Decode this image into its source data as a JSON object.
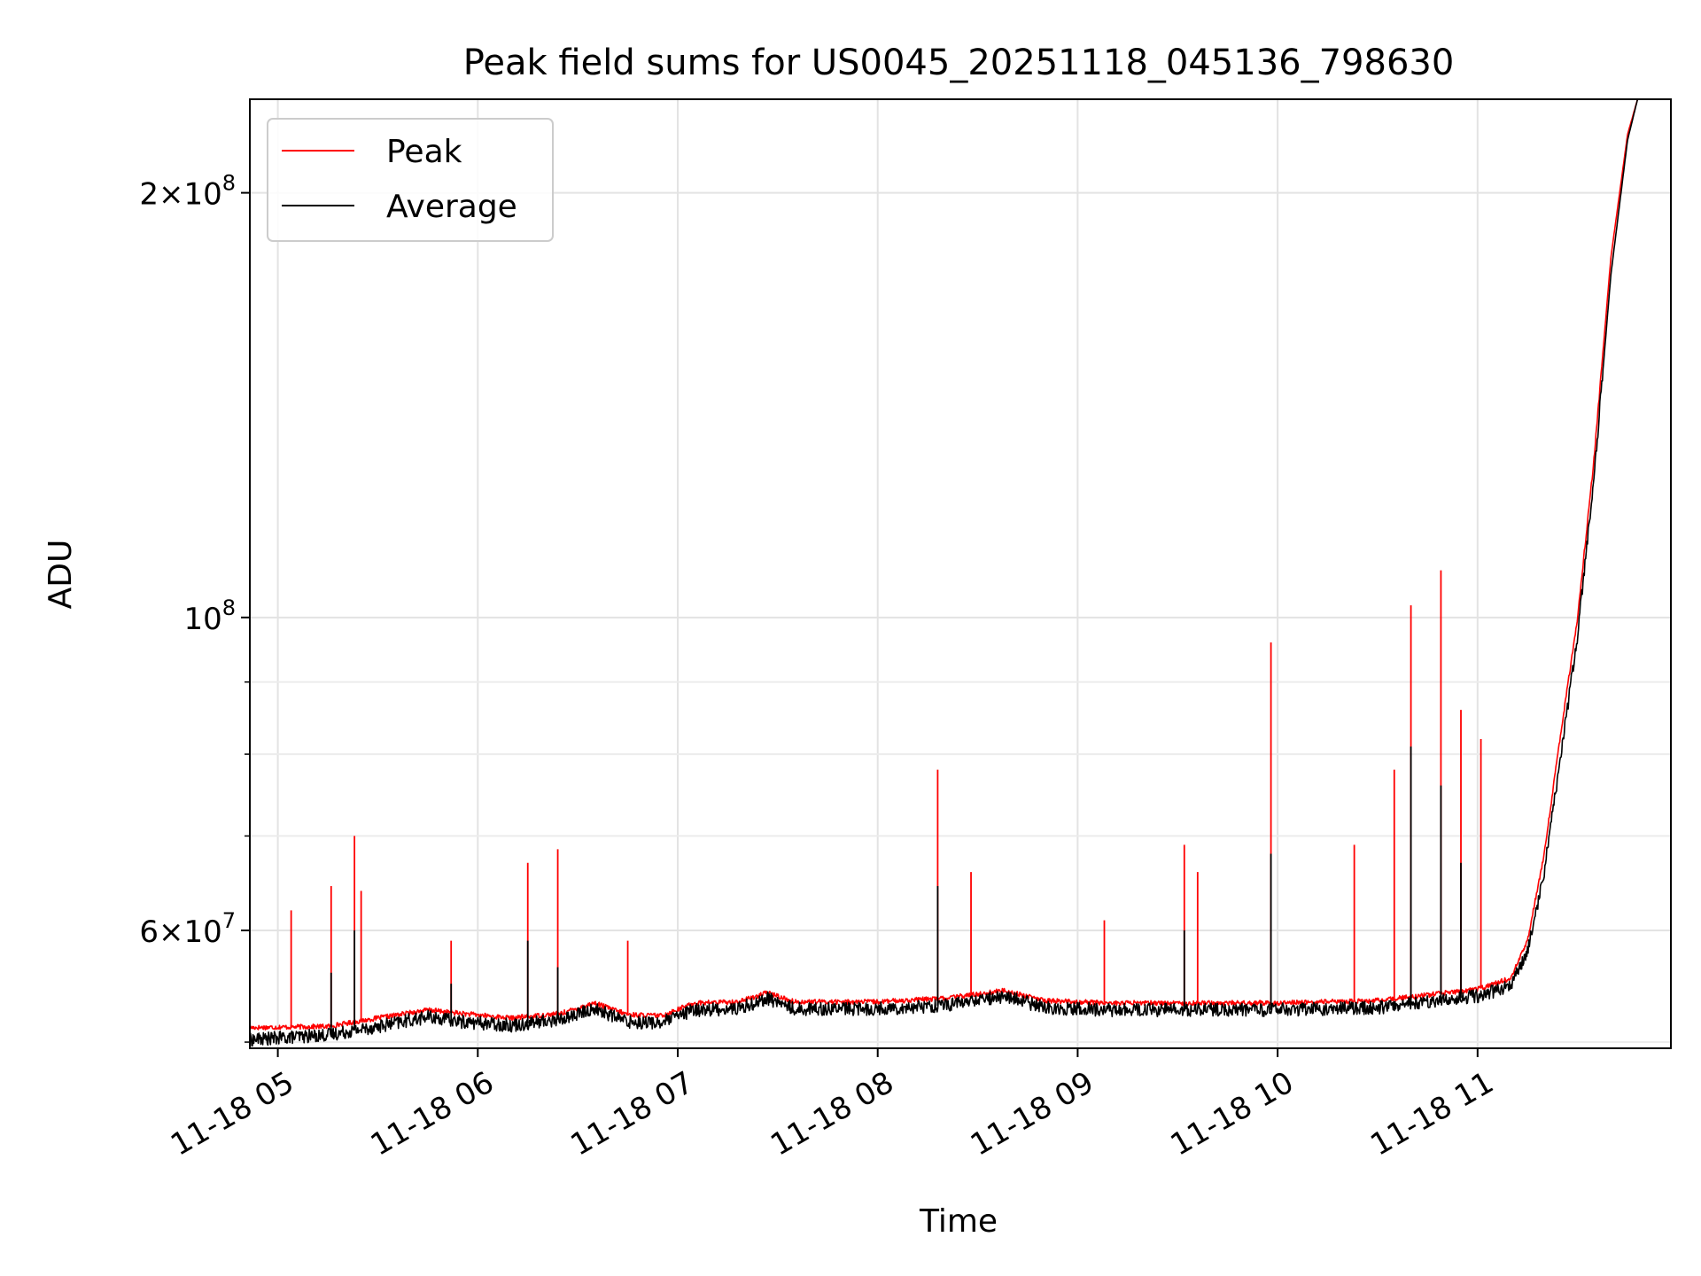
{
  "chart_data": {
    "type": "line",
    "title": "Peak field sums for US0045_20251118_045136_798630",
    "xlabel": "Time",
    "ylabel": "ADU",
    "y_scale": "log",
    "xlim": [
      "2025-11-18T04:51:36",
      "2025-11-18T11:58:00"
    ],
    "ylim": [
      49500000,
      233000000
    ],
    "grid": true,
    "legend_position": "top-left",
    "x_ticks": [
      {
        "value": "2025-11-18T05:00:00",
        "label": "11-18 05"
      },
      {
        "value": "2025-11-18T06:00:00",
        "label": "11-18 06"
      },
      {
        "value": "2025-11-18T07:00:00",
        "label": "11-18 07"
      },
      {
        "value": "2025-11-18T08:00:00",
        "label": "11-18 08"
      },
      {
        "value": "2025-11-18T09:00:00",
        "label": "11-18 09"
      },
      {
        "value": "2025-11-18T10:00:00",
        "label": "11-18 10"
      },
      {
        "value": "2025-11-18T11:00:00",
        "label": "11-18 11"
      }
    ],
    "y_major_ticks": [
      {
        "value": 60000000,
        "base": "6",
        "exp": "7"
      },
      {
        "value": 100000000,
        "base": "",
        "exp": "8"
      },
      {
        "value": 200000000,
        "base": "2",
        "exp": "8"
      }
    ],
    "y_minor_ticks": [
      50000000,
      70000000,
      80000000,
      90000000
    ],
    "series": [
      {
        "name": "Peak",
        "color": "#ff0000",
        "points": [
          [
            "2025-11-18T04:51:36",
            51200000
          ],
          [
            "2025-11-18T05:15:00",
            51300000
          ],
          [
            "2025-11-18T05:30:00",
            52000000
          ],
          [
            "2025-11-18T05:45:00",
            52700000
          ],
          [
            "2025-11-18T05:55:00",
            52400000
          ],
          [
            "2025-11-18T06:10:00",
            52000000
          ],
          [
            "2025-11-18T06:25:00",
            52400000
          ],
          [
            "2025-11-18T06:35:00",
            53300000
          ],
          [
            "2025-11-18T06:45:00",
            52300000
          ],
          [
            "2025-11-18T06:55:00",
            52200000
          ],
          [
            "2025-11-18T07:05:00",
            53300000
          ],
          [
            "2025-11-18T07:18:00",
            53400000
          ],
          [
            "2025-11-18T07:27:00",
            54200000
          ],
          [
            "2025-11-18T07:35:00",
            53400000
          ],
          [
            "2025-11-18T08:00:00",
            53400000
          ],
          [
            "2025-11-18T08:20:00",
            53700000
          ],
          [
            "2025-11-18T08:38:00",
            54400000
          ],
          [
            "2025-11-18T08:50:00",
            53500000
          ],
          [
            "2025-11-18T09:10:00",
            53300000
          ],
          [
            "2025-11-18T10:00:00",
            53300000
          ],
          [
            "2025-11-18T10:30:00",
            53500000
          ],
          [
            "2025-11-18T11:00:00",
            54500000
          ],
          [
            "2025-11-18T11:10:00",
            55500000
          ],
          [
            "2025-11-18T11:15:00",
            59000000
          ],
          [
            "2025-11-18T11:20:00",
            68000000
          ],
          [
            "2025-11-18T11:25:00",
            83000000
          ],
          [
            "2025-11-18T11:30:00",
            100000000
          ],
          [
            "2025-11-18T11:35:00",
            130000000
          ],
          [
            "2025-11-18T11:40:00",
            180000000
          ],
          [
            "2025-11-18T11:45:00",
            220000000
          ],
          [
            "2025-11-18T11:48:00",
            233000000
          ],
          [
            "2025-11-18T11:58:00",
            233000000
          ]
        ],
        "spikes": [
          [
            "2025-11-18T05:04:00",
            62000000
          ],
          [
            "2025-11-18T05:16:00",
            64500000
          ],
          [
            "2025-11-18T05:23:00",
            70000000
          ],
          [
            "2025-11-18T05:25:00",
            64000000
          ],
          [
            "2025-11-18T05:52:00",
            59000000
          ],
          [
            "2025-11-18T06:15:00",
            67000000
          ],
          [
            "2025-11-18T06:24:00",
            68500000
          ],
          [
            "2025-11-18T06:45:00",
            59000000
          ],
          [
            "2025-11-18T08:18:00",
            78000000
          ],
          [
            "2025-11-18T08:28:00",
            66000000
          ],
          [
            "2025-11-18T09:08:00",
            61000000
          ],
          [
            "2025-11-18T09:32:00",
            69000000
          ],
          [
            "2025-11-18T09:36:00",
            66000000
          ],
          [
            "2025-11-18T09:58:00",
            96000000
          ],
          [
            "2025-11-18T10:23:00",
            69000000
          ],
          [
            "2025-11-18T10:35:00",
            78000000
          ],
          [
            "2025-11-18T10:40:00",
            102000000
          ],
          [
            "2025-11-18T10:49:00",
            108000000
          ],
          [
            "2025-11-18T10:55:00",
            86000000
          ],
          [
            "2025-11-18T11:01:00",
            82000000
          ]
        ]
      },
      {
        "name": "Average",
        "color": "#000000",
        "points": [
          [
            "2025-11-18T04:51:36",
            50200000
          ],
          [
            "2025-11-18T05:15:00",
            50600000
          ],
          [
            "2025-11-18T05:30:00",
            51300000
          ],
          [
            "2025-11-18T05:45:00",
            52100000
          ],
          [
            "2025-11-18T05:55:00",
            51700000
          ],
          [
            "2025-11-18T06:10:00",
            51400000
          ],
          [
            "2025-11-18T06:25:00",
            51900000
          ],
          [
            "2025-11-18T06:35:00",
            52800000
          ],
          [
            "2025-11-18T06:45:00",
            51700000
          ],
          [
            "2025-11-18T06:55:00",
            51600000
          ],
          [
            "2025-11-18T07:05:00",
            52700000
          ],
          [
            "2025-11-18T07:18:00",
            52800000
          ],
          [
            "2025-11-18T07:27:00",
            53700000
          ],
          [
            "2025-11-18T07:35:00",
            52800000
          ],
          [
            "2025-11-18T08:00:00",
            52800000
          ],
          [
            "2025-11-18T08:20:00",
            53100000
          ],
          [
            "2025-11-18T08:38:00",
            53900000
          ],
          [
            "2025-11-18T08:50:00",
            52900000
          ],
          [
            "2025-11-18T09:10:00",
            52700000
          ],
          [
            "2025-11-18T10:00:00",
            52700000
          ],
          [
            "2025-11-18T10:30:00",
            52900000
          ],
          [
            "2025-11-18T11:00:00",
            53900000
          ],
          [
            "2025-11-18T11:10:00",
            54800000
          ],
          [
            "2025-11-18T11:15:00",
            58000000
          ],
          [
            "2025-11-18T11:20:00",
            66000000
          ],
          [
            "2025-11-18T11:25:00",
            80000000
          ],
          [
            "2025-11-18T11:30:00",
            97000000
          ],
          [
            "2025-11-18T11:35:00",
            126000000
          ],
          [
            "2025-11-18T11:40:00",
            175000000
          ],
          [
            "2025-11-18T11:45:00",
            218000000
          ],
          [
            "2025-11-18T11:48:00",
            233000000
          ],
          [
            "2025-11-18T11:58:00",
            233000000
          ]
        ],
        "spikes": [
          [
            "2025-11-18T05:16:00",
            56000000
          ],
          [
            "2025-11-18T05:23:00",
            60000000
          ],
          [
            "2025-11-18T05:52:00",
            55000000
          ],
          [
            "2025-11-18T06:15:00",
            59000000
          ],
          [
            "2025-11-18T06:24:00",
            56500000
          ],
          [
            "2025-11-18T08:18:00",
            64500000
          ],
          [
            "2025-11-18T09:32:00",
            60000000
          ],
          [
            "2025-11-18T09:58:00",
            68000000
          ],
          [
            "2025-11-18T10:40:00",
            81000000
          ],
          [
            "2025-11-18T10:49:00",
            76000000
          ],
          [
            "2025-11-18T10:55:00",
            67000000
          ]
        ]
      }
    ]
  }
}
